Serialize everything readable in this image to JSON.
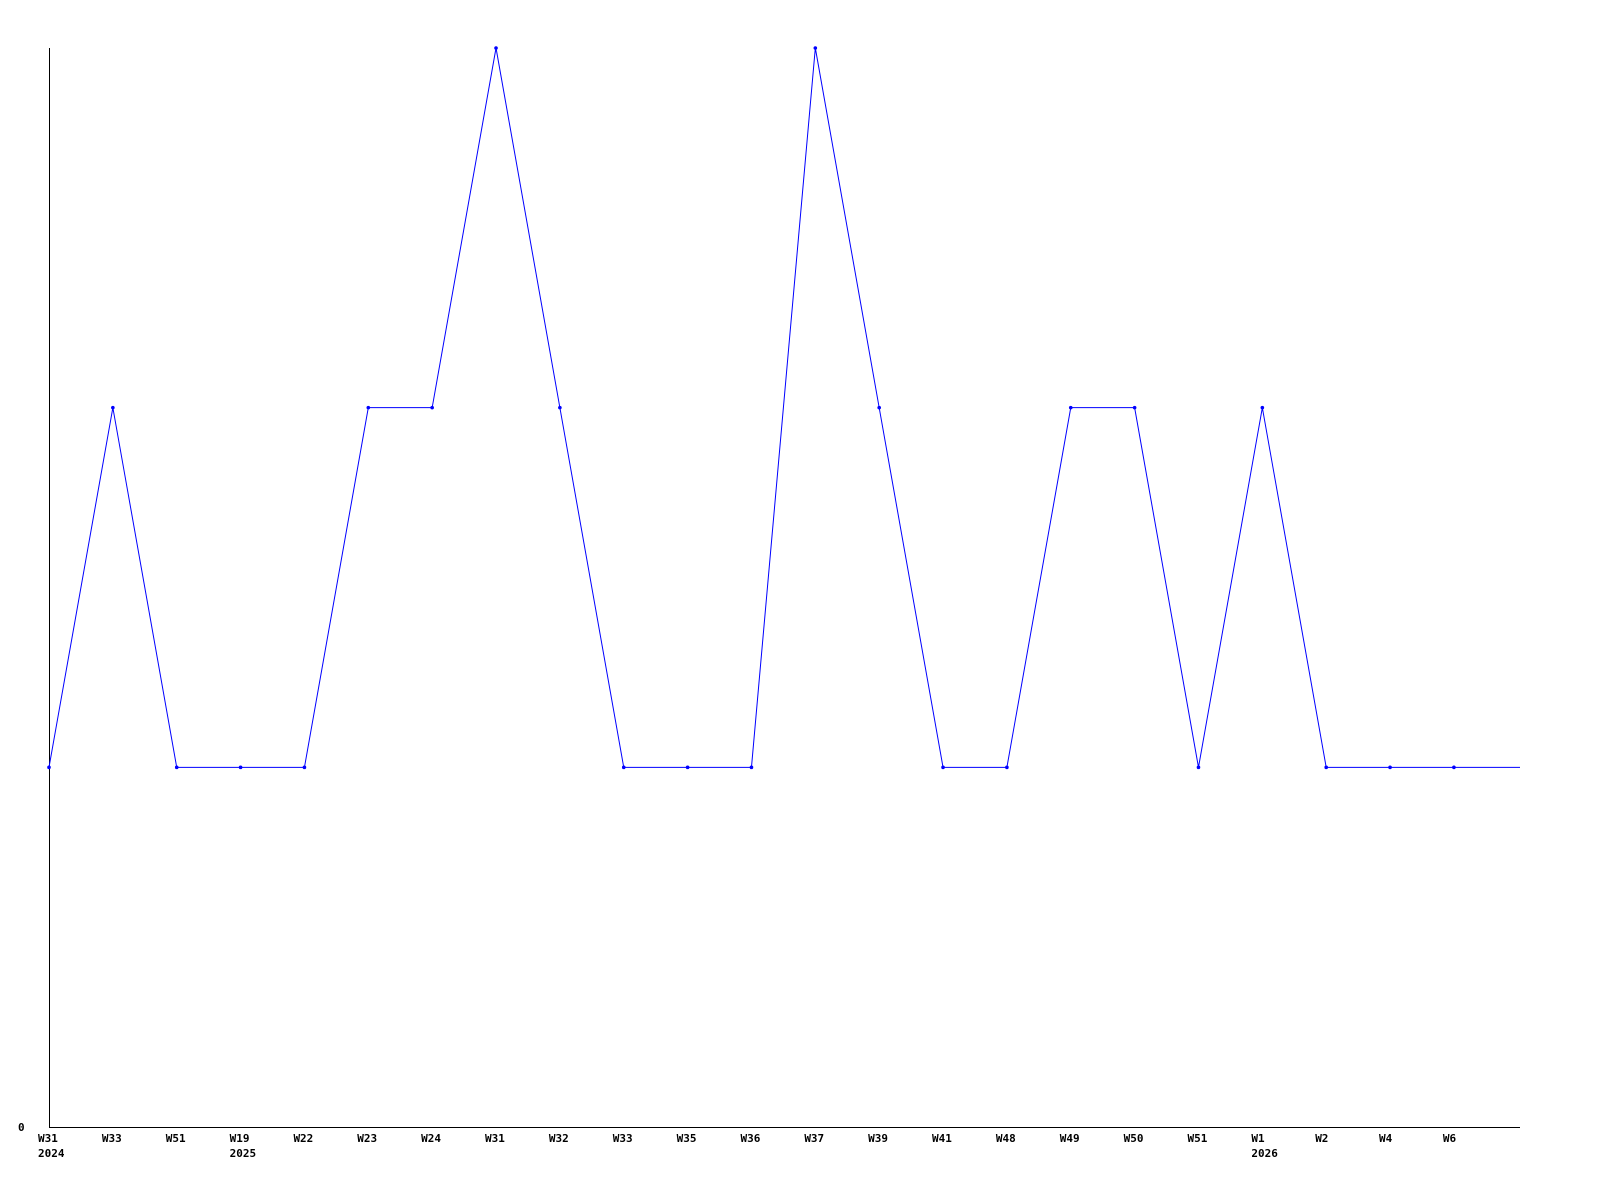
{
  "chart_data": {
    "type": "line",
    "title": "",
    "xlabel": "",
    "ylabel": "",
    "categories": [
      "W31",
      "W33",
      "W51",
      "W19",
      "W22",
      "W23",
      "W24",
      "W31",
      "W32",
      "W33",
      "W35",
      "W36",
      "W37",
      "W39",
      "W41",
      "W48",
      "W49",
      "W50",
      "W51",
      "W1",
      "W2",
      "W4",
      "W6"
    ],
    "year_labels": [
      {
        "index": 0,
        "label": "2024"
      },
      {
        "index": 3,
        "label": "2025"
      },
      {
        "index": 19,
        "label": "2026"
      }
    ],
    "series": [
      {
        "values": [
          1,
          2,
          1,
          1,
          1,
          2,
          2,
          3,
          2,
          1,
          1,
          1,
          3,
          2,
          1,
          1,
          2,
          2,
          1,
          2,
          1,
          1,
          1
        ],
        "color": "#0000ff"
      }
    ],
    "y_tick_labels": [
      {
        "value": 0,
        "label": "0"
      }
    ],
    "ylim": [
      0,
      3
    ],
    "grid": false,
    "axis_color": "#000000"
  }
}
